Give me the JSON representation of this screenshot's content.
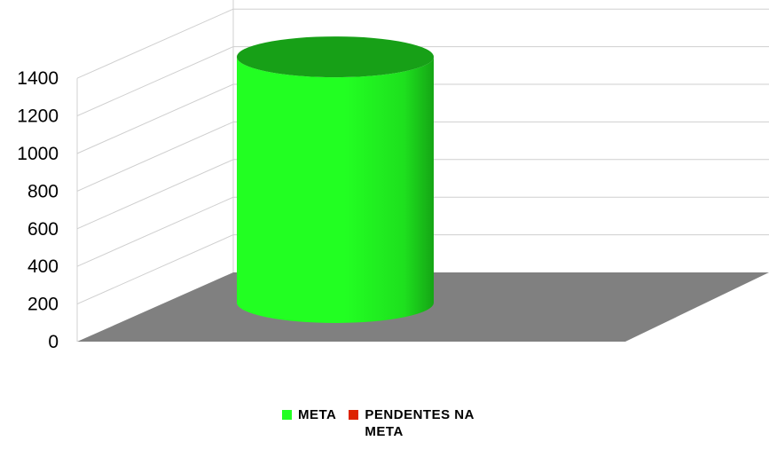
{
  "chart_data": {
    "type": "bar",
    "style": "3d-cylinder",
    "categories": [
      ""
    ],
    "series": [
      {
        "name": "META",
        "values": [
          1300
        ],
        "color": "#22ff22"
      },
      {
        "name": "PENDENTES NA META",
        "values": [
          0
        ],
        "color": "#dd2200"
      }
    ],
    "yticks": [
      "0",
      "200",
      "400",
      "600",
      "800",
      "1000",
      "1200",
      "1400"
    ],
    "ylim": [
      0,
      1400
    ],
    "grid": true,
    "floor_color": "#808080",
    "legend_position": "bottom"
  },
  "legend": [
    {
      "label": "META",
      "color": "#22ff22"
    },
    {
      "label": "PENDENTES NA META",
      "color": "#dd2200"
    }
  ]
}
